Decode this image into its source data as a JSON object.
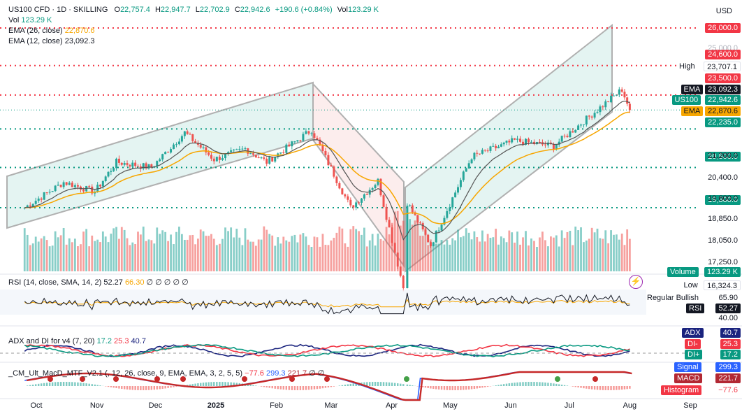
{
  "header": {
    "symbol": "US100 CFD · 1D · SKILLING",
    "open_label": "O",
    "open": "22,757.4",
    "high_label": "H",
    "high": "22,947.7",
    "low_label": "L",
    "low": "22,702.9",
    "close_label": "C",
    "close": "22,942.6",
    "change": "+190.6 (+0.84%)",
    "vol_label": "Vol",
    "vol": "123.29 K"
  },
  "legends": {
    "vol": {
      "label": "Vol",
      "value": "123.29 K"
    },
    "ema26": {
      "label": "EMA (26, close)",
      "value": "22,870.6"
    },
    "ema12": {
      "label": "EMA (12, close)",
      "value": "23,092.3"
    },
    "rsi": {
      "label": "RSI (14, close, SMA, 14, 2)",
      "v1": "52.27",
      "v2": "66.30",
      "rest": "∅ ∅ ∅ ∅ ∅"
    },
    "adx": {
      "label": "ADX and DI for v4 (7, 20)",
      "v1": "17.2",
      "v2": "25.3",
      "v3": "40.7"
    },
    "macd": {
      "label": "_CM_Ult_MacD_MTF_V2.1 (, 12, 26, close, 9, EMA, EMA, 3, 2, 5, 5)",
      "v1": "−77.6",
      "v2": "299.3",
      "v3": "221.7",
      "rest": "∅ ∅"
    }
  },
  "currency": "USD",
  "price_axis": [
    "26,000.0",
    "25,000.0",
    "24,600.0",
    "23,707.1",
    "23,500.0",
    "23,092.3",
    "22,942.6",
    "22,870.6",
    "22,235.0",
    "21,200.0",
    "20,800.0",
    "20,400.0",
    "19,600.0",
    "19,300.0",
    "18,850.0",
    "18,050.0",
    "17,250.0",
    "16,324.3"
  ],
  "price_tags": [
    {
      "value": "26,000.0",
      "kind": "level",
      "bg": "#f23645",
      "fg": "#ffffff"
    },
    {
      "value": "24,600.0",
      "kind": "level",
      "bg": "#f23645",
      "fg": "#ffffff"
    },
    {
      "label": "High",
      "value": "23,707.1",
      "kind": "info",
      "bg": "#ffffff",
      "fg": "#131722"
    },
    {
      "value": "23,500.0",
      "kind": "level",
      "bg": "#f23645",
      "fg": "#ffffff"
    },
    {
      "label": "EMA",
      "value": "23,092.3",
      "kind": "ema12",
      "bg": "#131722",
      "fg": "#ffffff"
    },
    {
      "label": "US100",
      "value": "22,942.6",
      "kind": "last",
      "bg": "#089981",
      "fg": "#ffffff"
    },
    {
      "label": "EMA",
      "value": "22,870.6",
      "kind": "ema26",
      "bg": "#f7a600",
      "fg": "#131722"
    },
    {
      "value": "22,235.0",
      "kind": "level",
      "bg": "#089981",
      "fg": "#ffffff"
    },
    {
      "value": "20,800.0",
      "kind": "level",
      "bg": "#089981",
      "fg": "#ffffff"
    },
    {
      "value": "19,300.0",
      "kind": "level",
      "bg": "#089981",
      "fg": "#ffffff"
    },
    {
      "label": "Volume",
      "value": "123.29 K",
      "kind": "volume",
      "bg": "#089981",
      "fg": "#ffffff"
    },
    {
      "label": "Low",
      "value": "16,324.3",
      "kind": "info",
      "bg": "#ffffff",
      "fg": "#131722"
    }
  ],
  "plain_prices": [
    "21,200.0",
    "20,400.0",
    "19,600.0",
    "18,850.0",
    "18,050.0",
    "17,250.0"
  ],
  "rsi_panel": {
    "label": "Regular Bullish",
    "level_upper": "65.90",
    "rsi_tag": "RSI",
    "rsi_value": "52.27",
    "level_lower": "40.00"
  },
  "adx_panel": {
    "adx_tag": "ADX",
    "adx_value": "40.7",
    "dim_tag": "DI-",
    "dim_value": "25.3",
    "dip_tag": "DI+",
    "dip_value": "17.2"
  },
  "macd_panel": {
    "signal_tag": "Signal",
    "signal_value": "299.3",
    "macd_tag": "MACD",
    "macd_value": "221.7",
    "hist_tag": "Histogram",
    "hist_value": "−77.6"
  },
  "x_axis": [
    {
      "label": "Oct",
      "bold": false
    },
    {
      "label": "Nov",
      "bold": false
    },
    {
      "label": "Dec",
      "bold": false
    },
    {
      "label": "2025",
      "bold": true
    },
    {
      "label": "Feb",
      "bold": false
    },
    {
      "label": "Mar",
      "bold": false
    },
    {
      "label": "Apr",
      "bold": false
    },
    {
      "label": "May",
      "bold": false
    },
    {
      "label": "Jun",
      "bold": false
    },
    {
      "label": "Jul",
      "bold": false
    },
    {
      "label": "Aug",
      "bold": false
    },
    {
      "label": "Sep",
      "bold": false
    }
  ],
  "colors": {
    "up": "#26a69a",
    "down": "#ef5350",
    "level_red": "#f23645",
    "level_green": "#089981",
    "ema26": "#f7a600",
    "ema12": "#555555",
    "channel": "#b2dfdb"
  },
  "chart_data": {
    "type": "candlestick",
    "price_path": [
      {
        "x": "2024-09-25",
        "y": 19300
      },
      {
        "x": "2024-10-15",
        "y": 20250
      },
      {
        "x": "2024-10-31",
        "y": 19900
      },
      {
        "x": "2024-11-11",
        "y": 21000
      },
      {
        "x": "2024-11-29",
        "y": 20800
      },
      {
        "x": "2024-12-16",
        "y": 22100
      },
      {
        "x": "2024-12-31",
        "y": 21100
      },
      {
        "x": "2025-01-16",
        "y": 21500
      },
      {
        "x": "2025-01-27",
        "y": 21000
      },
      {
        "x": "2025-02-19",
        "y": 22200
      },
      {
        "x": "2025-03-11",
        "y": 19300
      },
      {
        "x": "2025-03-25",
        "y": 20300
      },
      {
        "x": "2025-04-07",
        "y": 16324
      },
      {
        "x": "2025-04-09",
        "y": 19500
      },
      {
        "x": "2025-04-21",
        "y": 17900
      },
      {
        "x": "2025-05-12",
        "y": 21200
      },
      {
        "x": "2025-06-03",
        "y": 21800
      },
      {
        "x": "2025-06-23",
        "y": 21600
      },
      {
        "x": "2025-07-28",
        "y": 23707
      },
      {
        "x": "2025-08-01",
        "y": 22942
      }
    ],
    "levels": [
      26000,
      24600,
      23500,
      22235,
      20800,
      19300
    ],
    "high": 23707.1,
    "low": 16324.3,
    "last": 22942.6
  }
}
